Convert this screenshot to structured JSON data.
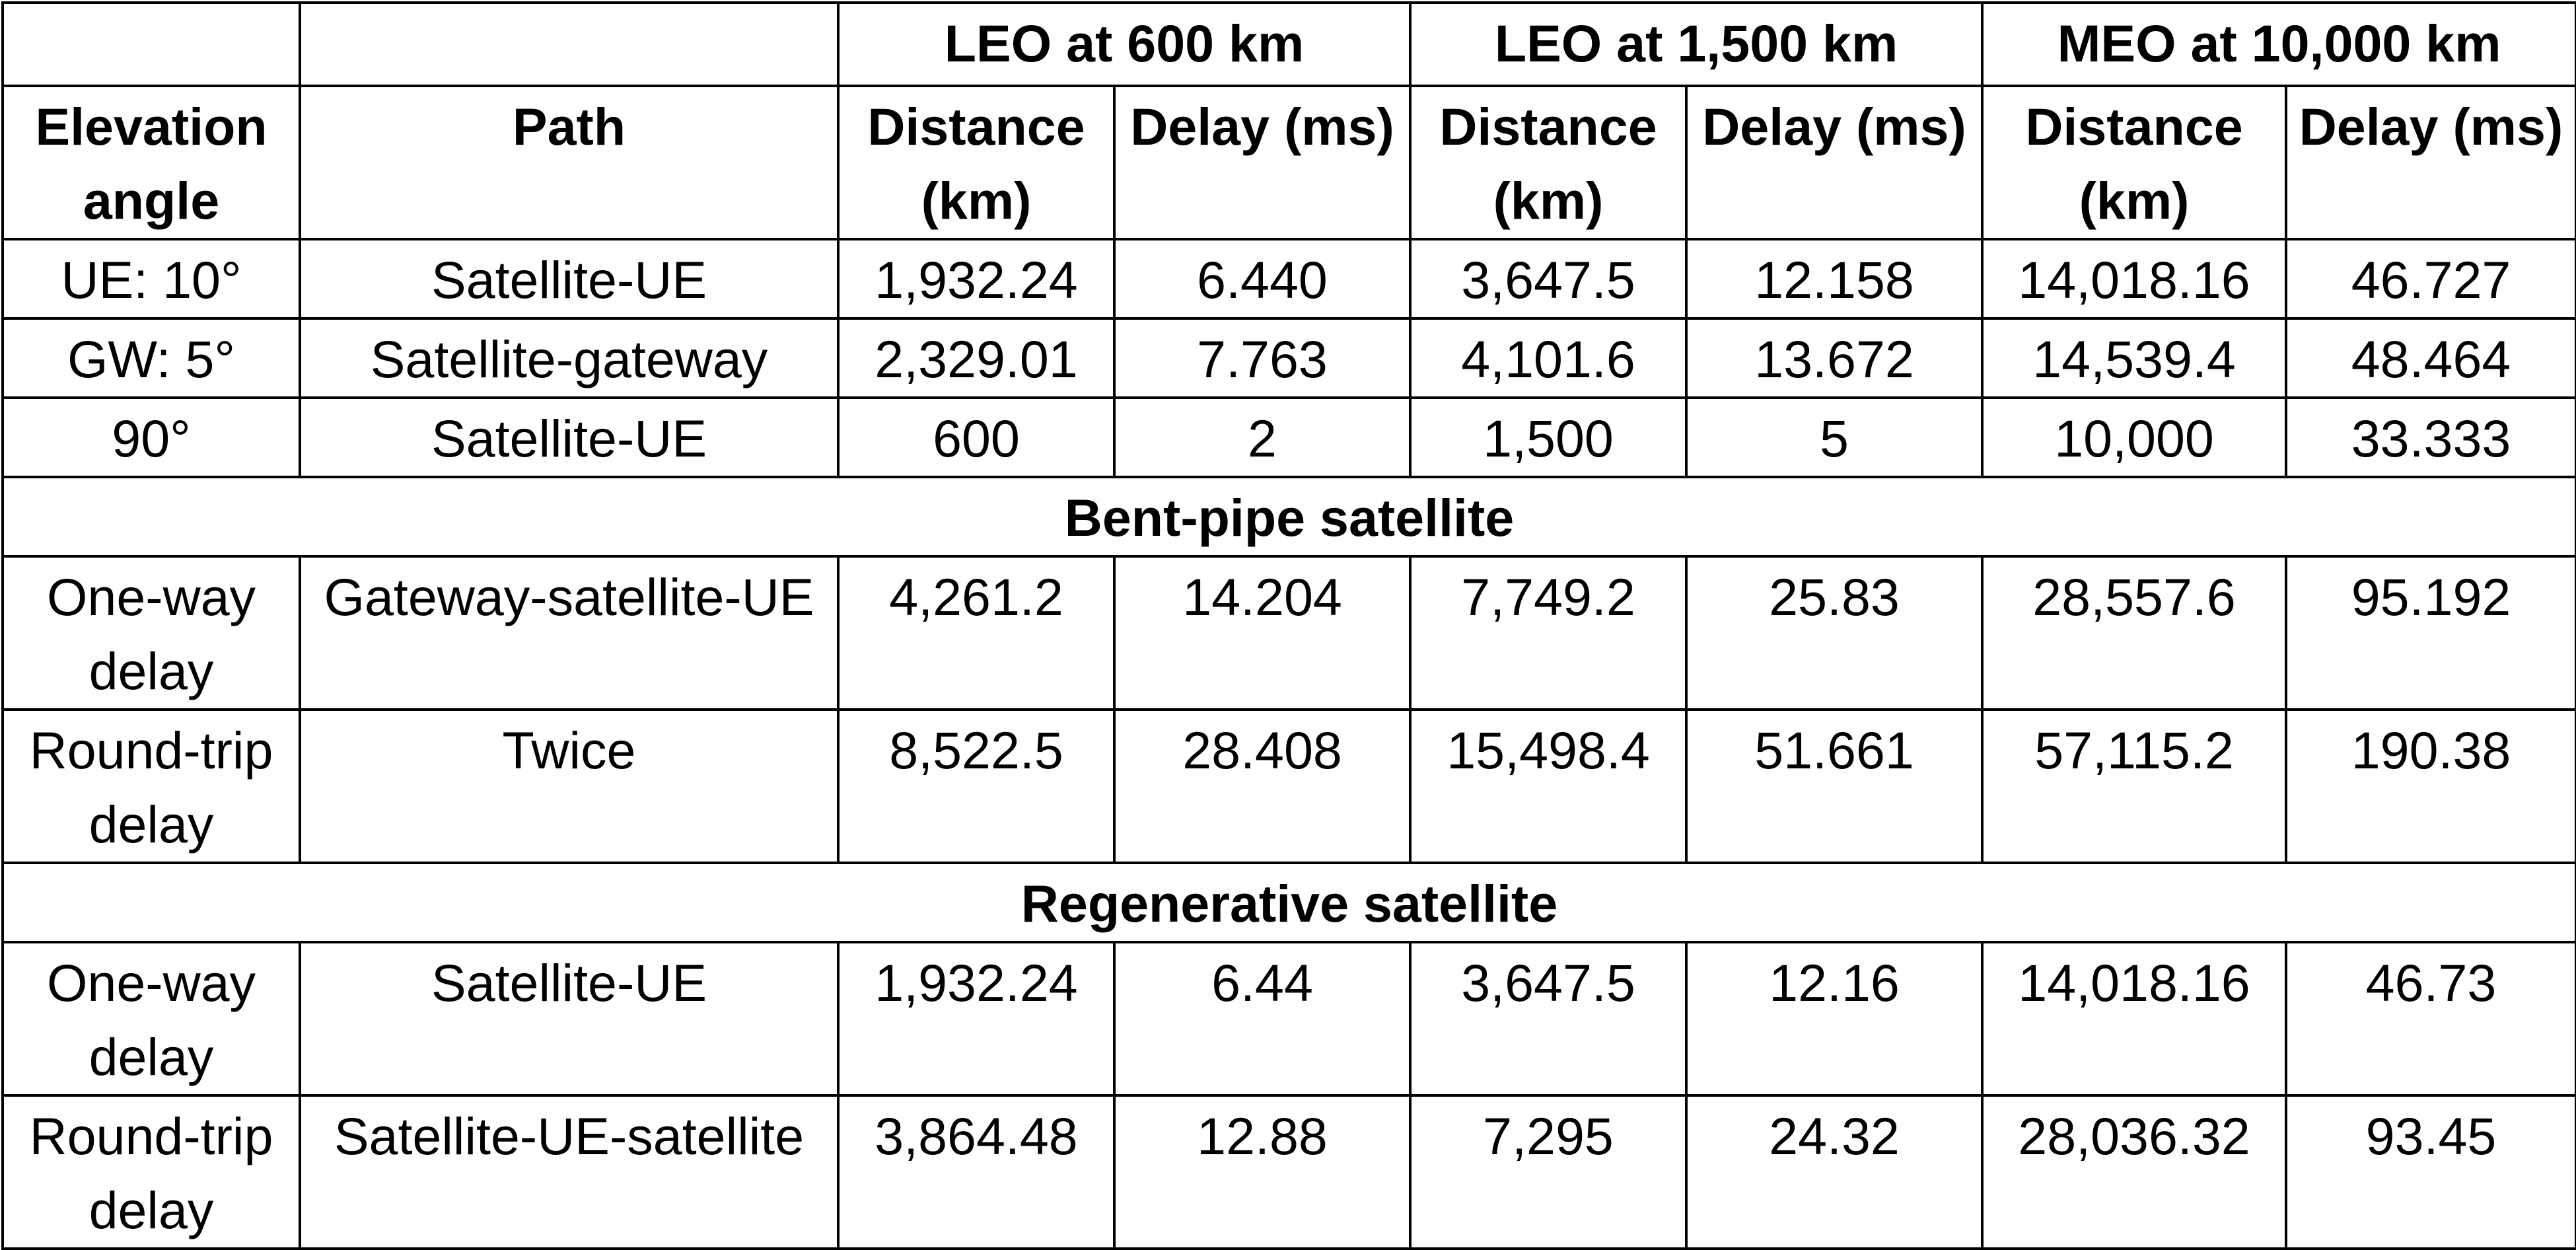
{
  "header": {
    "groups": [
      "LEO at 600 km",
      "LEO at 1,500 km",
      "MEO at 10,000 km"
    ],
    "elevation_angle": "Elevation angle",
    "path": "Path",
    "distance": "Distance (km)",
    "delay": "Delay (ms)"
  },
  "rows": [
    {
      "angle": "UE: 10°",
      "path": "Satellite-UE",
      "values": [
        "1,932.24",
        "6.440",
        "3,647.5",
        "12.158",
        "14,018.16",
        "46.727"
      ]
    },
    {
      "angle": "GW: 5°",
      "path": "Satellite-gateway",
      "values": [
        "2,329.01",
        "7.763",
        "4,101.6",
        "13.672",
        "14,539.4",
        "48.464"
      ]
    },
    {
      "angle": "90°",
      "path": "Satellite-UE",
      "values": [
        "600",
        "2",
        "1,500",
        "5",
        "10,000",
        "33.333"
      ]
    }
  ],
  "sections": [
    {
      "title": "Bent-pipe satellite",
      "rows": [
        {
          "angle": "One-way delay",
          "path": "Gateway-satellite-UE",
          "values": [
            "4,261.2",
            "14.204",
            "7,749.2",
            "25.83",
            "28,557.6",
            "95.192"
          ]
        },
        {
          "angle": "Round-trip delay",
          "path": "Twice",
          "values": [
            "8,522.5",
            "28.408",
            "15,498.4",
            "51.661",
            "57,115.2",
            "190.38"
          ]
        }
      ]
    },
    {
      "title": "Regenerative satellite",
      "rows": [
        {
          "angle": "One-way delay",
          "path": "Satellite-UE",
          "values": [
            "1,932.24",
            "6.44",
            "3,647.5",
            "12.16",
            "14,018.16",
            "46.73"
          ]
        },
        {
          "angle": "Round-trip delay",
          "path": "Satellite-UE-satellite",
          "values": [
            "3,864.48",
            "12.88",
            "7,295",
            "24.32",
            "28,036.32",
            "93.45"
          ]
        }
      ]
    }
  ]
}
